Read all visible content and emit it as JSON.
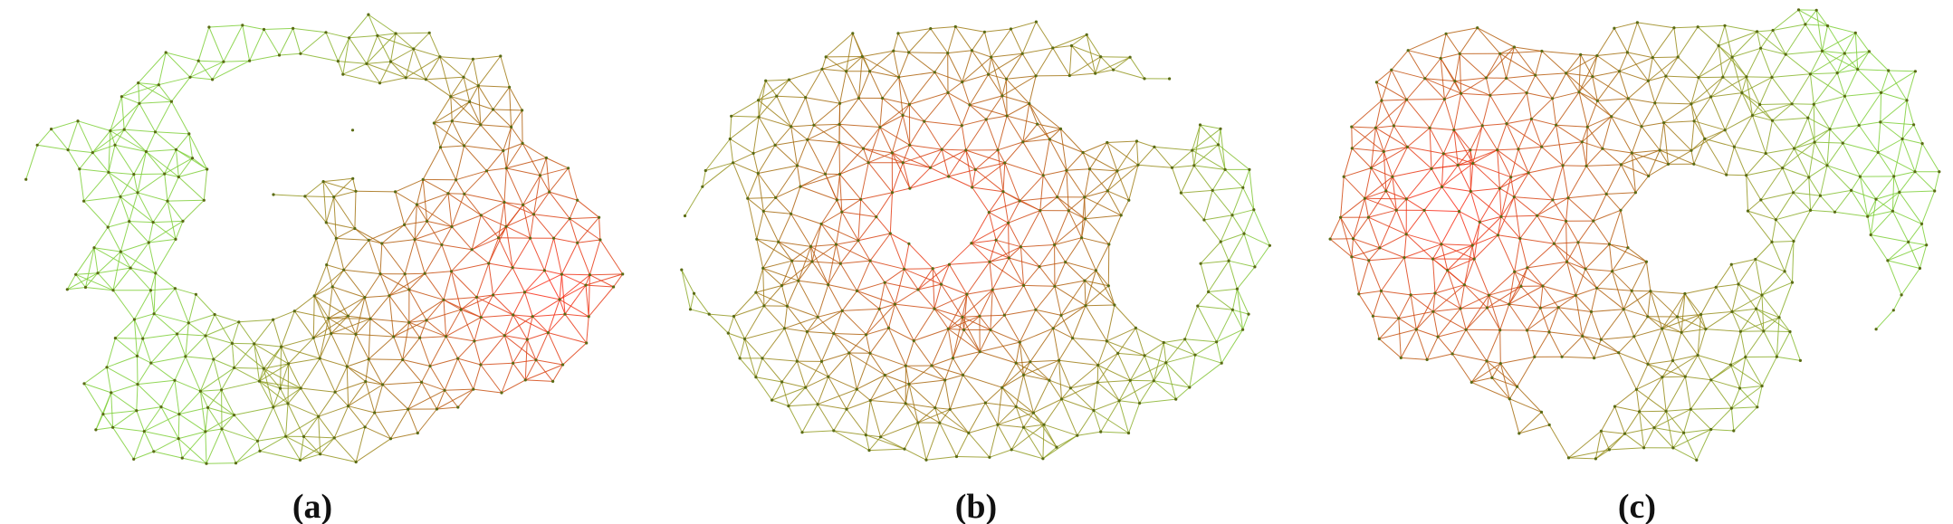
{
  "figure": {
    "panels": [
      {
        "label": "(a)"
      },
      {
        "label": "(b)"
      },
      {
        "label": "(c)"
      }
    ],
    "colors": {
      "hot": "#ff2a1a",
      "mid": "#a86a10",
      "cool": "#7fd03a",
      "node": "#5a6b14"
    }
  }
}
